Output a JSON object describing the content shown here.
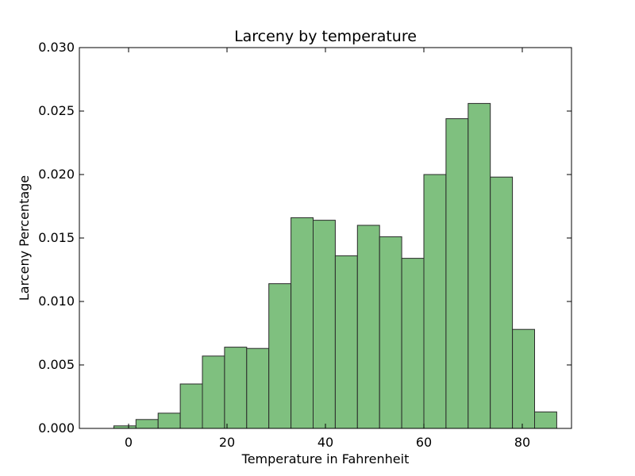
{
  "chart_data": {
    "type": "bar",
    "title": "Larceny by temperature",
    "xlabel": "Temperature in Fahrenheit",
    "ylabel": "Larceny Percentage",
    "xlim": [
      -10,
      90
    ],
    "ylim": [
      0,
      0.03
    ],
    "xticks": [
      0,
      20,
      40,
      60,
      80
    ],
    "yticks": [
      0.0,
      0.005,
      0.01,
      0.015,
      0.02,
      0.025,
      0.03
    ],
    "xtick_labels": [
      "0",
      "20",
      "40",
      "60",
      "80"
    ],
    "ytick_labels": [
      "0.000",
      "0.005",
      "0.010",
      "0.015",
      "0.020",
      "0.025",
      "0.030"
    ],
    "grid": false,
    "legend": "none",
    "bar_color": "#7fc07f",
    "edge_color": "#2a2a2a",
    "series": [
      {
        "bins": [
          {
            "x0": -3.0,
            "x1": 1.5,
            "value": 0.0002
          },
          {
            "x0": 1.5,
            "x1": 6.0,
            "value": 0.0007
          },
          {
            "x0": 6.0,
            "x1": 10.5,
            "value": 0.0012
          },
          {
            "x0": 10.5,
            "x1": 15.0,
            "value": 0.0035
          },
          {
            "x0": 15.0,
            "x1": 19.5,
            "value": 0.0057
          },
          {
            "x0": 19.5,
            "x1": 24.0,
            "value": 0.0064
          },
          {
            "x0": 24.0,
            "x1": 28.5,
            "value": 0.0063
          },
          {
            "x0": 28.5,
            "x1": 33.0,
            "value": 0.0114
          },
          {
            "x0": 33.0,
            "x1": 37.5,
            "value": 0.0166
          },
          {
            "x0": 37.5,
            "x1": 42.0,
            "value": 0.0164
          },
          {
            "x0": 42.0,
            "x1": 46.5,
            "value": 0.0136
          },
          {
            "x0": 46.5,
            "x1": 51.0,
            "value": 0.016
          },
          {
            "x0": 51.0,
            "x1": 55.5,
            "value": 0.0151
          },
          {
            "x0": 55.5,
            "x1": 60.0,
            "value": 0.0134
          },
          {
            "x0": 60.0,
            "x1": 64.5,
            "value": 0.02
          },
          {
            "x0": 64.5,
            "x1": 69.0,
            "value": 0.0244
          },
          {
            "x0": 69.0,
            "x1": 73.5,
            "value": 0.0256
          },
          {
            "x0": 73.5,
            "x1": 78.0,
            "value": 0.0198
          },
          {
            "x0": 78.0,
            "x1": 82.5,
            "value": 0.0078
          },
          {
            "x0": 82.5,
            "x1": 87.0,
            "value": 0.0013
          }
        ]
      }
    ]
  }
}
